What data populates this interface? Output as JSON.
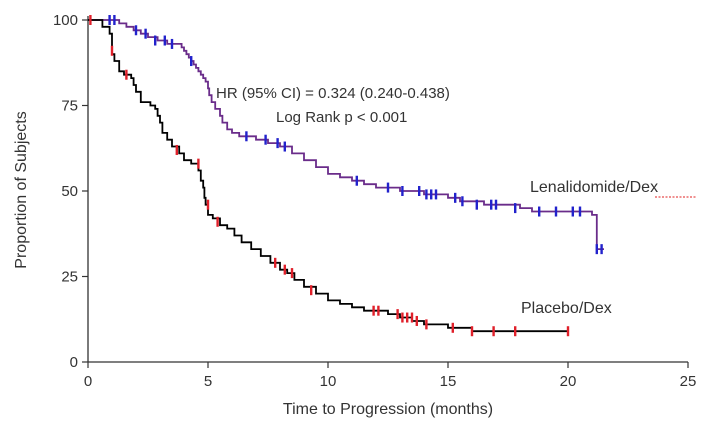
{
  "chart_data": {
    "type": "line",
    "subtype": "kaplan-meier",
    "title": "",
    "xlabel": "Time to Progression (months)",
    "ylabel": "Proportion of Subjects",
    "xlim": [
      0,
      25
    ],
    "ylim": [
      0,
      100
    ],
    "x_ticks": [
      0,
      5,
      10,
      15,
      20,
      25
    ],
    "y_ticks": [
      0,
      25,
      50,
      75,
      100
    ],
    "grid": false,
    "annotations": [
      "HR (95% CI) = 0.324 (0.240-0.438)",
      "Log Rank p < 0.001"
    ],
    "series": [
      {
        "name": "Lenalidomide/Dex",
        "line_color": "#6a2c8a",
        "censor_color": "#2222cc",
        "steps": [
          [
            0,
            100
          ],
          [
            1,
            100
          ],
          [
            1.3,
            99
          ],
          [
            1.6,
            98
          ],
          [
            1.9,
            97
          ],
          [
            2.2,
            96
          ],
          [
            2.5,
            95
          ],
          [
            2.9,
            94
          ],
          [
            3.3,
            93
          ],
          [
            3.7,
            93
          ],
          [
            3.9,
            92
          ],
          [
            4.0,
            91
          ],
          [
            4.1,
            90
          ],
          [
            4.2,
            89
          ],
          [
            4.3,
            88
          ],
          [
            4.4,
            87
          ],
          [
            4.5,
            86
          ],
          [
            4.6,
            85
          ],
          [
            4.7,
            84
          ],
          [
            4.8,
            83
          ],
          [
            4.9,
            82
          ],
          [
            5.0,
            80
          ],
          [
            5.05,
            78
          ],
          [
            5.15,
            76
          ],
          [
            5.3,
            74
          ],
          [
            5.5,
            72
          ],
          [
            5.6,
            70
          ],
          [
            5.8,
            68
          ],
          [
            6.0,
            67
          ],
          [
            6.3,
            66
          ],
          [
            7.0,
            65
          ],
          [
            7.5,
            64
          ],
          [
            8.0,
            63
          ],
          [
            8.5,
            61
          ],
          [
            9.0,
            59
          ],
          [
            9.5,
            57
          ],
          [
            10.0,
            55
          ],
          [
            10.5,
            54
          ],
          [
            11.0,
            53
          ],
          [
            11.5,
            52
          ],
          [
            12.0,
            51
          ],
          [
            12.5,
            51
          ],
          [
            13.0,
            50
          ],
          [
            13.5,
            50
          ],
          [
            14.0,
            49
          ],
          [
            15.0,
            48
          ],
          [
            15.5,
            47
          ],
          [
            16.5,
            46
          ],
          [
            18.0,
            45
          ],
          [
            18.5,
            44
          ],
          [
            21.0,
            43
          ],
          [
            21.2,
            33
          ],
          [
            21.5,
            33
          ]
        ],
        "censored": [
          [
            0.9,
            100
          ],
          [
            1.1,
            100
          ],
          [
            2.0,
            97
          ],
          [
            2.4,
            96
          ],
          [
            2.8,
            94
          ],
          [
            3.2,
            94
          ],
          [
            3.5,
            93
          ],
          [
            4.3,
            88
          ],
          [
            6.6,
            66
          ],
          [
            7.4,
            65
          ],
          [
            7.9,
            64
          ],
          [
            8.2,
            63
          ],
          [
            11.2,
            53
          ],
          [
            12.5,
            51
          ],
          [
            13.1,
            50
          ],
          [
            13.8,
            50
          ],
          [
            14.1,
            49
          ],
          [
            14.3,
            49
          ],
          [
            14.5,
            49
          ],
          [
            15.3,
            48
          ],
          [
            15.6,
            47
          ],
          [
            16.2,
            46
          ],
          [
            16.8,
            46
          ],
          [
            17.0,
            46
          ],
          [
            17.8,
            45
          ],
          [
            18.8,
            44
          ],
          [
            19.5,
            44
          ],
          [
            20.2,
            44
          ],
          [
            20.5,
            44
          ],
          [
            21.2,
            33
          ],
          [
            21.4,
            33
          ]
        ]
      },
      {
        "name": "Placebo/Dex",
        "line_color": "#000000",
        "censor_color": "#e0202a",
        "steps": [
          [
            0,
            100
          ],
          [
            0.6,
            98
          ],
          [
            0.9,
            96
          ],
          [
            1.0,
            90
          ],
          [
            1.1,
            88
          ],
          [
            1.3,
            85
          ],
          [
            1.5,
            84
          ],
          [
            1.8,
            83
          ],
          [
            1.9,
            81
          ],
          [
            2.0,
            79
          ],
          [
            2.2,
            76
          ],
          [
            2.6,
            75
          ],
          [
            2.8,
            74
          ],
          [
            2.9,
            72
          ],
          [
            3.0,
            70
          ],
          [
            3.1,
            67
          ],
          [
            3.3,
            65
          ],
          [
            3.5,
            63
          ],
          [
            3.8,
            61
          ],
          [
            4.0,
            59
          ],
          [
            4.3,
            58
          ],
          [
            4.6,
            56
          ],
          [
            4.7,
            53
          ],
          [
            4.8,
            51
          ],
          [
            4.85,
            48
          ],
          [
            4.9,
            46
          ],
          [
            5.0,
            43
          ],
          [
            5.2,
            42
          ],
          [
            5.5,
            40
          ],
          [
            5.8,
            39
          ],
          [
            6.1,
            37
          ],
          [
            6.4,
            35
          ],
          [
            6.8,
            33
          ],
          [
            7.2,
            31
          ],
          [
            7.6,
            29
          ],
          [
            8.0,
            27
          ],
          [
            8.3,
            26
          ],
          [
            8.6,
            24
          ],
          [
            9.0,
            22
          ],
          [
            9.5,
            20
          ],
          [
            10.0,
            18
          ],
          [
            10.5,
            17
          ],
          [
            11.0,
            16
          ],
          [
            11.5,
            15
          ],
          [
            12.5,
            14
          ],
          [
            13.0,
            13
          ],
          [
            13.5,
            12
          ],
          [
            14.0,
            11
          ],
          [
            15.0,
            10
          ],
          [
            16.0,
            9
          ],
          [
            20.0,
            9
          ]
        ],
        "censored": [
          [
            0.1,
            100
          ],
          [
            1.0,
            91
          ],
          [
            1.6,
            84
          ],
          [
            3.7,
            62
          ],
          [
            4.6,
            58
          ],
          [
            5.0,
            46
          ],
          [
            5.4,
            41
          ],
          [
            7.8,
            29
          ],
          [
            8.2,
            27
          ],
          [
            8.5,
            26
          ],
          [
            9.3,
            21
          ],
          [
            11.9,
            15
          ],
          [
            12.1,
            15
          ],
          [
            12.9,
            14
          ],
          [
            13.1,
            13
          ],
          [
            13.3,
            13
          ],
          [
            13.5,
            13
          ],
          [
            13.7,
            12
          ],
          [
            14.1,
            11
          ],
          [
            15.2,
            10
          ],
          [
            16.0,
            9
          ],
          [
            16.9,
            9
          ],
          [
            17.8,
            9
          ],
          [
            20.0,
            9
          ]
        ]
      }
    ]
  }
}
